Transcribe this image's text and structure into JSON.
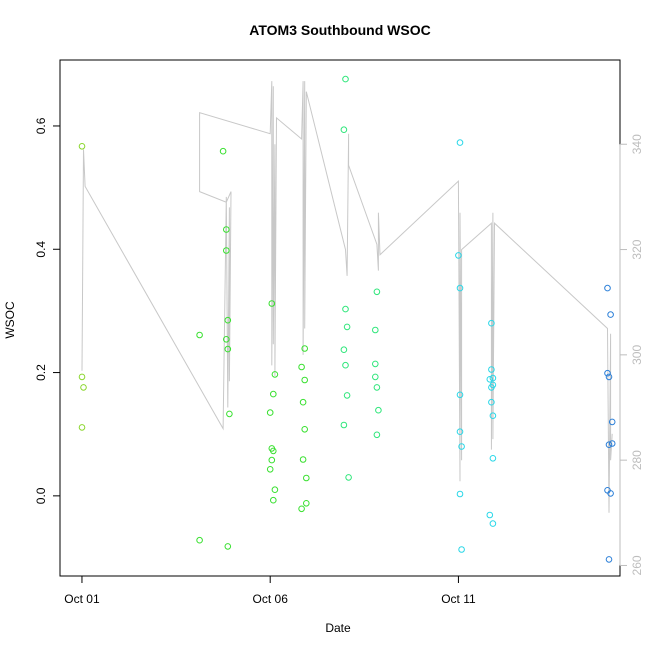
{
  "chart_data": {
    "type": "scatter",
    "title": "ATOM3 Southbound WSOC",
    "xlabel": "Date",
    "ylabel": "WSOC",
    "x_ticks": [
      "Oct 01",
      "Oct 06",
      "Oct 11"
    ],
    "y_ticks": [
      "0.0",
      "0.2",
      "0.4",
      "0.6"
    ],
    "y2_ticks": [
      "260",
      "280",
      "300",
      "320",
      "340"
    ],
    "xlim": [
      "2016-09-30T10:00",
      "2016-10-15T07:00"
    ],
    "ylim": [
      -0.13,
      0.707
    ],
    "y2lim": [
      258,
      356
    ],
    "colors": {
      "trace": "#c8c8c8",
      "right_axis": "#bdbdbd",
      "point_palette": [
        "#8ad62d",
        "#38e02f",
        "#2ee67a",
        "#2ee6c3",
        "#2ad7e8",
        "#29a3e0",
        "#2b7fd8"
      ]
    },
    "series": [
      {
        "values": [
          {
            "x": "2016-10-01T00:00",
            "y": 0.567,
            "c": 0
          },
          {
            "x": "2016-10-01T00:00",
            "y": 0.193,
            "c": 0
          },
          {
            "x": "2016-10-01T01:00",
            "y": 0.176,
            "c": 0
          },
          {
            "x": "2016-10-01T00:00",
            "y": 0.111,
            "c": 0
          },
          {
            "x": "2016-10-04T03:00",
            "y": 0.261,
            "c": 1
          },
          {
            "x": "2016-10-04T03:00",
            "y": -0.072,
            "c": 1
          },
          {
            "x": "2016-10-04T18:00",
            "y": 0.559,
            "c": 1
          },
          {
            "x": "2016-10-04T20:00",
            "y": 0.432,
            "c": 1
          },
          {
            "x": "2016-10-04T20:00",
            "y": 0.398,
            "c": 1
          },
          {
            "x": "2016-10-04T21:00",
            "y": 0.285,
            "c": 1
          },
          {
            "x": "2016-10-04T20:00",
            "y": 0.254,
            "c": 1
          },
          {
            "x": "2016-10-04T21:00",
            "y": 0.238,
            "c": 1
          },
          {
            "x": "2016-10-04T22:00",
            "y": 0.133,
            "c": 1
          },
          {
            "x": "2016-10-04T21:00",
            "y": -0.082,
            "c": 1
          },
          {
            "x": "2016-10-06T01:00",
            "y": 0.312,
            "c": 1
          },
          {
            "x": "2016-10-06T03:00",
            "y": 0.197,
            "c": 1
          },
          {
            "x": "2016-10-06T02:00",
            "y": 0.165,
            "c": 1
          },
          {
            "x": "2016-10-06T00:00",
            "y": 0.135,
            "c": 1
          },
          {
            "x": "2016-10-06T01:00",
            "y": 0.077,
            "c": 1
          },
          {
            "x": "2016-10-06T02:00",
            "y": 0.073,
            "c": 1
          },
          {
            "x": "2016-10-06T01:00",
            "y": 0.058,
            "c": 1
          },
          {
            "x": "2016-10-06T00:00",
            "y": 0.043,
            "c": 1
          },
          {
            "x": "2016-10-06T03:00",
            "y": 0.01,
            "c": 1
          },
          {
            "x": "2016-10-06T02:00",
            "y": -0.007,
            "c": 1
          },
          {
            "x": "2016-10-06T22:00",
            "y": 0.239,
            "c": 1
          },
          {
            "x": "2016-10-06T20:00",
            "y": 0.209,
            "c": 1
          },
          {
            "x": "2016-10-06T22:00",
            "y": 0.188,
            "c": 1
          },
          {
            "x": "2016-10-06T21:00",
            "y": 0.152,
            "c": 1
          },
          {
            "x": "2016-10-06T22:00",
            "y": 0.108,
            "c": 1
          },
          {
            "x": "2016-10-06T21:00",
            "y": 0.059,
            "c": 1
          },
          {
            "x": "2016-10-06T23:00",
            "y": 0.029,
            "c": 1
          },
          {
            "x": "2016-10-06T23:00",
            "y": -0.012,
            "c": 1
          },
          {
            "x": "2016-10-06T20:00",
            "y": -0.021,
            "c": 1
          },
          {
            "x": "2016-10-08T00:00",
            "y": 0.676,
            "c": 2
          },
          {
            "x": "2016-10-07T23:00",
            "y": 0.594,
            "c": 2
          },
          {
            "x": "2016-10-08T00:00",
            "y": 0.303,
            "c": 2
          },
          {
            "x": "2016-10-08T01:00",
            "y": 0.274,
            "c": 2
          },
          {
            "x": "2016-10-07T23:00",
            "y": 0.237,
            "c": 2
          },
          {
            "x": "2016-10-08T00:00",
            "y": 0.212,
            "c": 2
          },
          {
            "x": "2016-10-08T01:00",
            "y": 0.163,
            "c": 2
          },
          {
            "x": "2016-10-07T23:00",
            "y": 0.115,
            "c": 2
          },
          {
            "x": "2016-10-08T02:00",
            "y": 0.03,
            "c": 2
          },
          {
            "x": "2016-10-08T20:00",
            "y": 0.331,
            "c": 2
          },
          {
            "x": "2016-10-08T19:00",
            "y": 0.269,
            "c": 2
          },
          {
            "x": "2016-10-08T19:00",
            "y": 0.214,
            "c": 2
          },
          {
            "x": "2016-10-08T19:00",
            "y": 0.193,
            "c": 2
          },
          {
            "x": "2016-10-08T20:00",
            "y": 0.176,
            "c": 2
          },
          {
            "x": "2016-10-08T21:00",
            "y": 0.139,
            "c": 2
          },
          {
            "x": "2016-10-08T20:00",
            "y": 0.099,
            "c": 2
          },
          {
            "x": "2016-10-11T01:00",
            "y": 0.573,
            "c": 4
          },
          {
            "x": "2016-10-11T00:00",
            "y": 0.39,
            "c": 4
          },
          {
            "x": "2016-10-11T01:00",
            "y": 0.337,
            "c": 4
          },
          {
            "x": "2016-10-11T01:00",
            "y": 0.164,
            "c": 4
          },
          {
            "x": "2016-10-11T01:00",
            "y": 0.104,
            "c": 4
          },
          {
            "x": "2016-10-11T02:00",
            "y": 0.08,
            "c": 4
          },
          {
            "x": "2016-10-11T01:00",
            "y": 0.003,
            "c": 4
          },
          {
            "x": "2016-10-11T02:00",
            "y": -0.087,
            "c": 4
          },
          {
            "x": "2016-10-11T21:00",
            "y": 0.28,
            "c": 4
          },
          {
            "x": "2016-10-11T21:00",
            "y": 0.205,
            "c": 4
          },
          {
            "x": "2016-10-11T22:00",
            "y": 0.191,
            "c": 4
          },
          {
            "x": "2016-10-11T20:00",
            "y": 0.189,
            "c": 4
          },
          {
            "x": "2016-10-11T22:00",
            "y": 0.18,
            "c": 4
          },
          {
            "x": "2016-10-11T21:00",
            "y": 0.176,
            "c": 4
          },
          {
            "x": "2016-10-11T21:00",
            "y": 0.152,
            "c": 4
          },
          {
            "x": "2016-10-11T22:00",
            "y": 0.13,
            "c": 4
          },
          {
            "x": "2016-10-11T22:00",
            "y": 0.061,
            "c": 4
          },
          {
            "x": "2016-10-11T20:00",
            "y": -0.031,
            "c": 4
          },
          {
            "x": "2016-10-11T22:00",
            "y": -0.045,
            "c": 4
          },
          {
            "x": "2016-10-14T23:00",
            "y": 0.337,
            "c": 6
          },
          {
            "x": "2016-10-15T01:00",
            "y": 0.294,
            "c": 6
          },
          {
            "x": "2016-10-14T23:00",
            "y": 0.199,
            "c": 6
          },
          {
            "x": "2016-10-15T00:00",
            "y": 0.193,
            "c": 6
          },
          {
            "x": "2016-10-15T02:00",
            "y": 0.12,
            "c": 6
          },
          {
            "x": "2016-10-15T02:00",
            "y": 0.085,
            "c": 6
          },
          {
            "x": "2016-10-15T00:00",
            "y": 0.083,
            "c": 6
          },
          {
            "x": "2016-10-14T23:00",
            "y": 0.009,
            "c": 6
          },
          {
            "x": "2016-10-15T01:00",
            "y": 0.004,
            "c": 6
          },
          {
            "x": "2016-10-15T00:00",
            "y": -0.103,
            "c": 6
          }
        ]
      },
      {
        "axis": "right",
        "values": [
          {
            "x": "2016-10-01T00:00",
            "y": 297
          },
          {
            "x": "2016-10-01T01:00",
            "y": 339
          },
          {
            "x": "2016-10-01T02:00",
            "y": 332
          },
          {
            "x": "2016-10-04T18:00",
            "y": 286
          },
          {
            "x": "2016-10-04T20:00",
            "y": 330
          },
          {
            "x": "2016-10-04T21:00",
            "y": 290
          },
          {
            "x": "2016-10-04T22:00",
            "y": 328
          },
          {
            "x": "2016-10-04T22:00",
            "y": 295
          },
          {
            "x": "2016-10-04T23:00",
            "y": 331
          },
          {
            "x": "2016-10-04T20:00",
            "y": 329
          },
          {
            "x": "2016-10-04T03:00",
            "y": 331
          },
          {
            "x": "2016-10-04T03:00",
            "y": 346
          },
          {
            "x": "2016-10-06T00:00",
            "y": 342
          },
          {
            "x": "2016-10-06T01:00",
            "y": 352
          },
          {
            "x": "2016-10-06T01:00",
            "y": 298
          },
          {
            "x": "2016-10-06T02:00",
            "y": 351
          },
          {
            "x": "2016-10-06T02:00",
            "y": 302
          },
          {
            "x": "2016-10-06T03:00",
            "y": 340
          },
          {
            "x": "2016-10-06T03:00",
            "y": 296
          },
          {
            "x": "2016-10-06T04:00",
            "y": 345
          },
          {
            "x": "2016-10-06T20:00",
            "y": 341
          },
          {
            "x": "2016-10-06T21:00",
            "y": 352
          },
          {
            "x": "2016-10-06T21:00",
            "y": 300
          },
          {
            "x": "2016-10-06T22:00",
            "y": 352
          },
          {
            "x": "2016-10-06T22:00",
            "y": 305
          },
          {
            "x": "2016-10-06T23:00",
            "y": 350
          },
          {
            "x": "2016-10-08T00:00",
            "y": 320
          },
          {
            "x": "2016-10-08T01:00",
            "y": 315
          },
          {
            "x": "2016-10-08T02:00",
            "y": 342
          },
          {
            "x": "2016-10-08T02:00",
            "y": 336
          },
          {
            "x": "2016-10-08T20:00",
            "y": 321
          },
          {
            "x": "2016-10-08T21:00",
            "y": 316
          },
          {
            "x": "2016-10-08T21:00",
            "y": 327
          },
          {
            "x": "2016-10-08T22:00",
            "y": 319
          },
          {
            "x": "2016-10-11T00:00",
            "y": 333
          },
          {
            "x": "2016-10-11T01:00",
            "y": 276
          },
          {
            "x": "2016-10-11T01:00",
            "y": 327
          },
          {
            "x": "2016-10-11T02:00",
            "y": 280
          },
          {
            "x": "2016-10-11T02:00",
            "y": 320
          },
          {
            "x": "2016-10-11T21:00",
            "y": 325
          },
          {
            "x": "2016-10-11T21:00",
            "y": 282
          },
          {
            "x": "2016-10-11T22:00",
            "y": 327
          },
          {
            "x": "2016-10-11T22:00",
            "y": 284
          },
          {
            "x": "2016-10-11T23:00",
            "y": 325
          },
          {
            "x": "2016-10-14T23:00",
            "y": 305
          },
          {
            "x": "2016-10-15T00:00",
            "y": 270
          },
          {
            "x": "2016-10-15T01:00",
            "y": 304
          },
          {
            "x": "2016-10-15T01:00",
            "y": 280
          },
          {
            "x": "2016-10-15T02:00",
            "y": 285
          }
        ]
      }
    ],
    "grid": false,
    "legend": "none"
  }
}
